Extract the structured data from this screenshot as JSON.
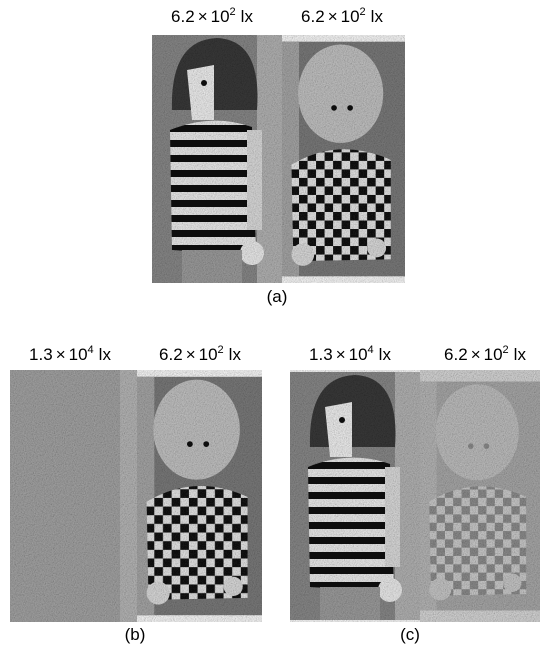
{
  "panels": [
    {
      "caption": "(a)",
      "labels": [
        {
          "coefficient": "6.2",
          "operator": "×",
          "base": "10",
          "exponent": "2",
          "unit": "lx"
        },
        {
          "coefficient": "6.2",
          "operator": "×",
          "base": "10",
          "exponent": "2",
          "unit": "lx"
        }
      ]
    },
    {
      "caption": "(b)",
      "labels": [
        {
          "coefficient": "1.3",
          "operator": "×",
          "base": "10",
          "exponent": "4",
          "unit": "lx"
        },
        {
          "coefficient": "6.2",
          "operator": "×",
          "base": "10",
          "exponent": "2",
          "unit": "lx"
        }
      ]
    },
    {
      "caption": "(c)",
      "labels": [
        {
          "coefficient": "1.3",
          "operator": "×",
          "base": "10",
          "exponent": "4",
          "unit": "lx"
        },
        {
          "coefficient": "6.2",
          "operator": "×",
          "base": "10",
          "exponent": "2",
          "unit": "lx"
        }
      ]
    }
  ]
}
